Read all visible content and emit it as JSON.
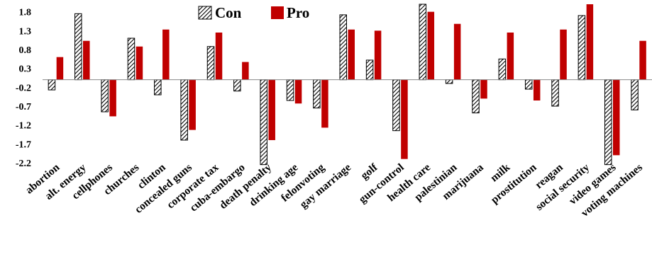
{
  "chart_data": {
    "type": "bar",
    "title": "",
    "xlabel": "",
    "ylabel": "",
    "ylim": [
      -2.2,
      2.0
    ],
    "yticks": [
      "1.8",
      "1.3",
      "0.8",
      "0.3",
      "-0.2",
      "-0.7",
      "-1.2",
      "-1.7",
      "-2.2"
    ],
    "grid": false,
    "legend_position": "top",
    "categories": [
      "abortion",
      "alt. energy",
      "cellphones",
      "churches",
      "clinton",
      "concealed guns",
      "corporate tax",
      "cuba-embargo",
      "death penalty",
      "drinking age",
      "felonvoting",
      "gay marriage",
      "golf",
      "gun-control",
      "health care",
      "palestinian",
      "marijuana",
      "milk",
      "prostitution",
      "reagan",
      "social security",
      "video games",
      "voting machines"
    ],
    "series": [
      {
        "name": "Con",
        "pattern": "hatched",
        "color": "#000000",
        "values": [
          -0.27,
          1.75,
          -0.85,
          1.1,
          -0.4,
          -1.6,
          0.88,
          -0.3,
          -2.3,
          -0.55,
          -0.75,
          1.72,
          0.52,
          -1.35,
          2.25,
          -0.1,
          -0.88,
          0.55,
          -0.25,
          -0.7,
          1.7,
          -2.3,
          -0.8
        ]
      },
      {
        "name": "Pro",
        "pattern": "solid",
        "color": "#c00000",
        "values": [
          0.6,
          1.03,
          -0.97,
          0.88,
          1.33,
          -1.33,
          1.25,
          0.47,
          -1.6,
          -0.63,
          -1.27,
          1.33,
          1.3,
          -2.1,
          1.8,
          1.48,
          -0.5,
          1.25,
          -0.55,
          1.33,
          2.25,
          -2.0,
          1.03
        ]
      }
    ]
  }
}
